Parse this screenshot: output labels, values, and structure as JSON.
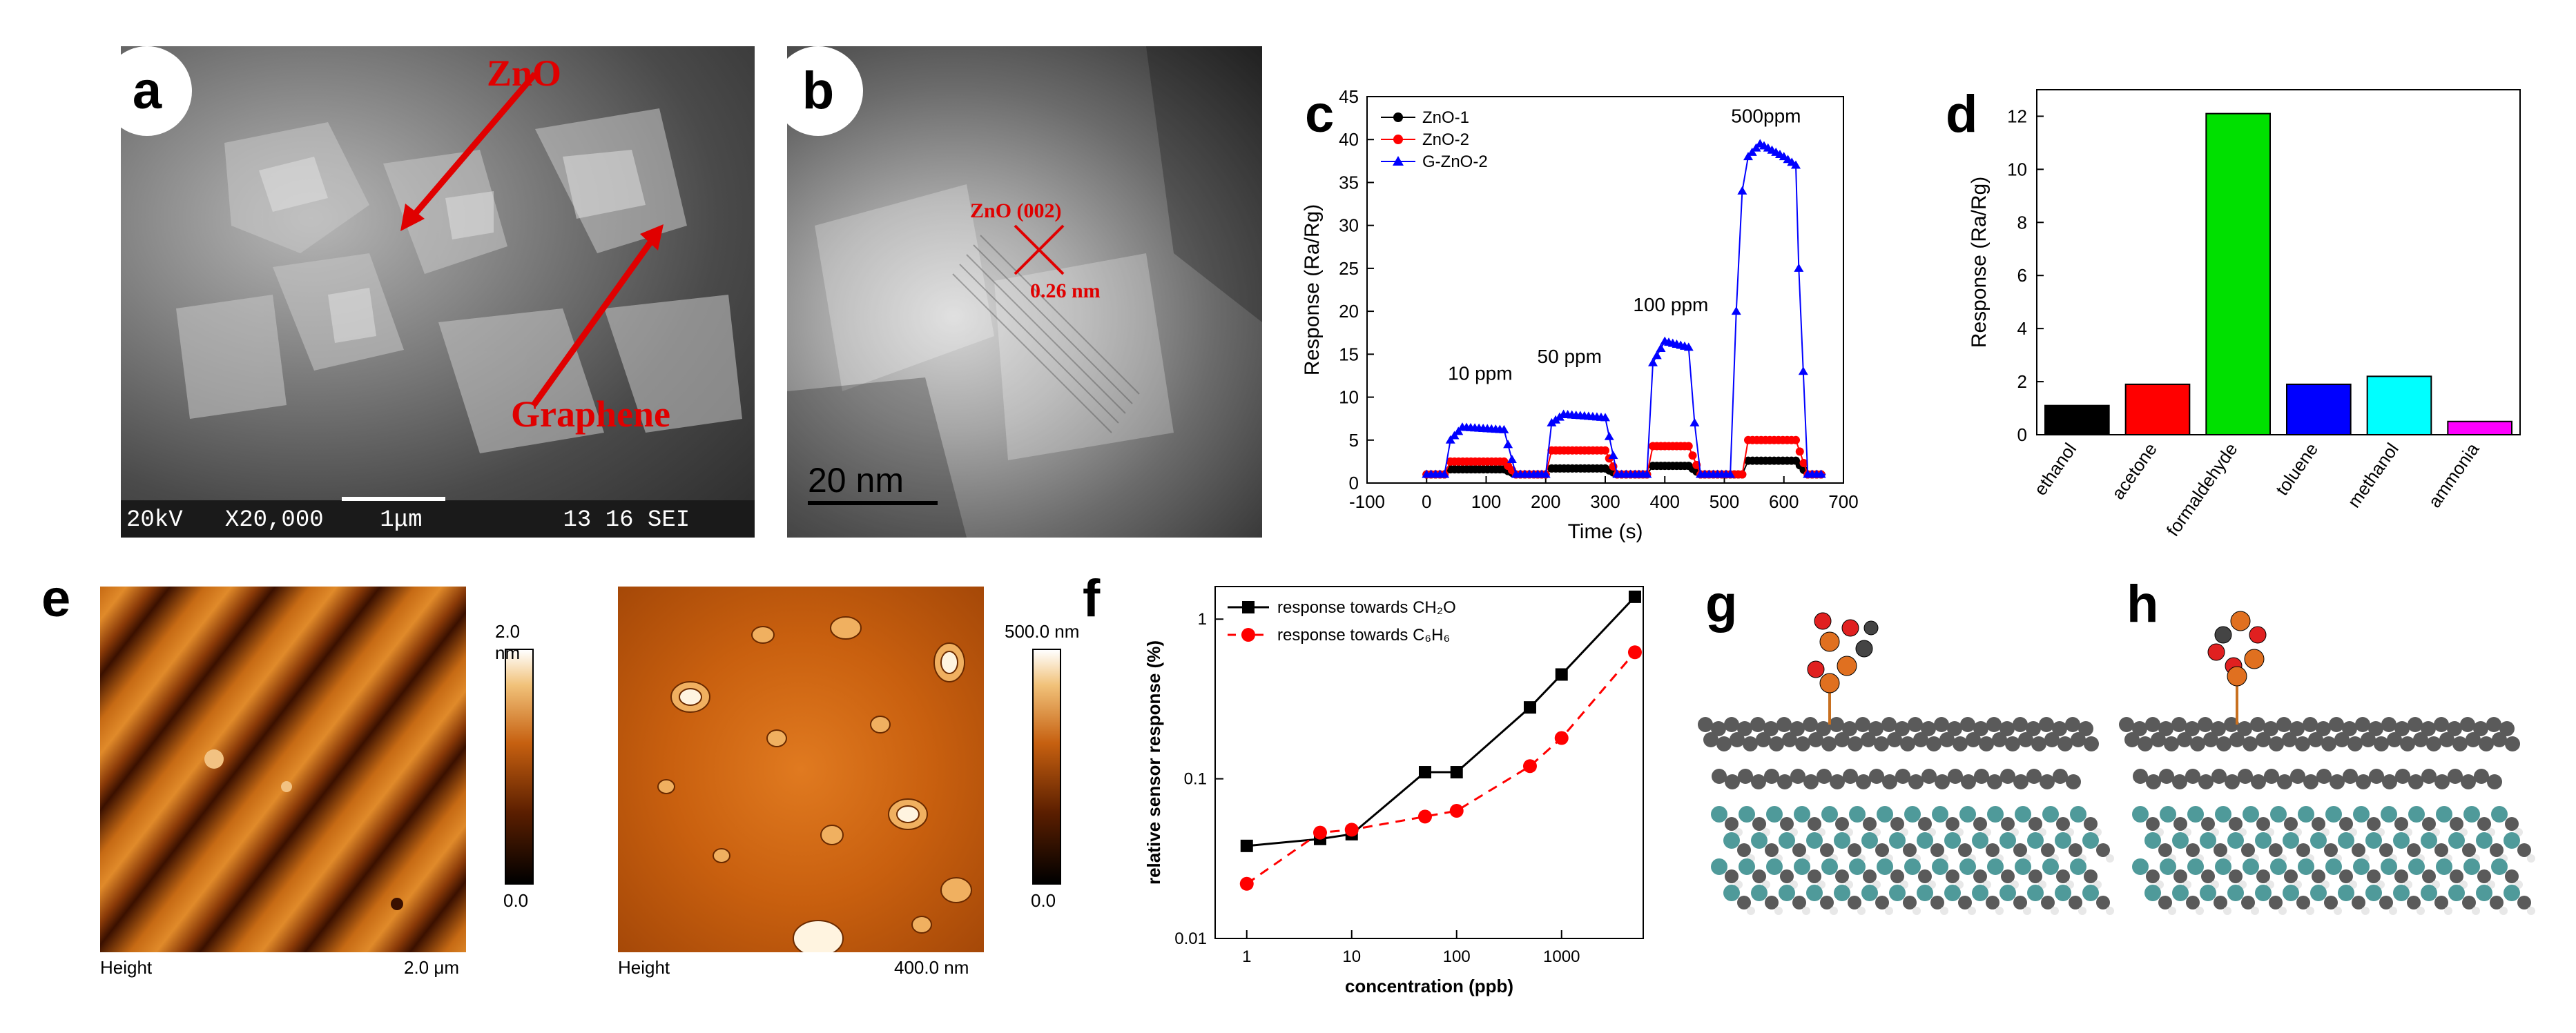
{
  "panels": {
    "a": {
      "label": "a",
      "zno": "ZnO",
      "graphene": "Graphene",
      "sem_bar": "20kV   X20,000    1μm          13 16 SEI"
    },
    "b": {
      "label": "b",
      "lattice": "ZnO (002)",
      "spacing": "0.26 nm",
      "scale": "20 nm"
    },
    "c": {
      "label": "c"
    },
    "d": {
      "label": "d"
    },
    "e": {
      "label": "e",
      "left": {
        "bottom_left": "Height",
        "bottom_right": "2.0 μm",
        "cmax": "2.0 nm",
        "cmin": "0.0"
      },
      "right": {
        "bottom_left": "Height",
        "bottom_right": "400.0 nm",
        "cmax": "500.0 nm",
        "cmin": "0.0"
      }
    },
    "f": {
      "label": "f"
    },
    "g": {
      "label": "g"
    },
    "h": {
      "label": "h"
    }
  },
  "colors": {
    "zno1": "#000000",
    "zno2": "#ff0000",
    "gzno2": "#0000ff",
    "annot": "#e00000"
  },
  "chart_data": [
    {
      "id": "c",
      "type": "line",
      "title": "",
      "xlabel": "Time (s)",
      "ylabel": "Response (Ra/Rg)",
      "xlim": [
        -100,
        700
      ],
      "ylim": [
        0,
        45
      ],
      "xticks": [
        -100,
        0,
        100,
        200,
        300,
        400,
        500,
        600,
        700
      ],
      "yticks": [
        0,
        5,
        10,
        15,
        20,
        25,
        30,
        35,
        40,
        45
      ],
      "legend": [
        "ZnO-1",
        "ZnO-2",
        "G-ZnO-2"
      ],
      "annotations": [
        {
          "text": "10 ppm",
          "x": 90,
          "y": 12
        },
        {
          "text": "50 ppm",
          "x": 240,
          "y": 14
        },
        {
          "text": "100 ppm",
          "x": 410,
          "y": 20
        },
        {
          "text": "500ppm",
          "x": 570,
          "y": 42
        }
      ],
      "series": [
        {
          "name": "ZnO-1",
          "color": "#000000",
          "x": [
            0,
            30,
            40,
            130,
            150,
            180,
            200,
            210,
            300,
            320,
            350,
            370,
            380,
            440,
            460,
            510,
            530,
            540,
            620,
            640,
            670
          ],
          "y": [
            1,
            1,
            1.6,
            1.6,
            1,
            1,
            1,
            1.7,
            1.7,
            1,
            1,
            1,
            2,
            2,
            1,
            1,
            1,
            2.6,
            2.6,
            1,
            1
          ]
        },
        {
          "name": "ZnO-2",
          "color": "#ff0000",
          "x": [
            0,
            30,
            40,
            130,
            150,
            180,
            200,
            210,
            300,
            320,
            350,
            370,
            380,
            440,
            460,
            510,
            530,
            540,
            620,
            640,
            670
          ],
          "y": [
            1,
            1,
            2.5,
            2.5,
            1,
            1,
            1,
            3.8,
            3.8,
            1,
            1,
            1,
            4.3,
            4.3,
            1,
            1,
            1,
            5,
            5,
            1,
            1
          ]
        },
        {
          "name": "G-ZnO-2",
          "color": "#0000ff",
          "x": [
            0,
            30,
            40,
            60,
            130,
            150,
            180,
            200,
            210,
            230,
            300,
            320,
            350,
            370,
            380,
            400,
            440,
            450,
            460,
            510,
            520,
            530,
            540,
            560,
            600,
            620,
            625,
            640,
            670
          ],
          "y": [
            1,
            1,
            5,
            6.5,
            6.2,
            1,
            1,
            1,
            7,
            8,
            7.6,
            1,
            1,
            1,
            14,
            16.5,
            15.8,
            7,
            1,
            1,
            20,
            34,
            38,
            39.5,
            38,
            37,
            25,
            1,
            1
          ]
        }
      ]
    },
    {
      "id": "d",
      "type": "bar",
      "ylabel": "Response (Ra/Rg)",
      "ylim": [
        0,
        13
      ],
      "yticks": [
        0,
        2,
        4,
        6,
        8,
        10,
        12
      ],
      "categories": [
        "ethanol",
        "acetone",
        "formaldehyde",
        "toluene",
        "methanol",
        "ammonia"
      ],
      "values": [
        1.1,
        1.9,
        12.1,
        1.9,
        2.2,
        0.5
      ],
      "colors": [
        "#000000",
        "#ff0000",
        "#00e000",
        "#0000ff",
        "#00ffff",
        "#ff00ff"
      ]
    },
    {
      "id": "f",
      "type": "line",
      "xlabel": "concentration (ppb)",
      "ylabel": "relative sensor response (%)",
      "xscale": "log",
      "yscale": "log",
      "xlim": [
        0.5,
        6000
      ],
      "ylim": [
        0.01,
        1.6
      ],
      "xticks": [
        1,
        10,
        100,
        1000
      ],
      "yticks": [
        0.01,
        0.1,
        1
      ],
      "series": [
        {
          "name": "response towards CH₂O",
          "color": "#000000",
          "style": "solid",
          "x": [
            1,
            5,
            10,
            50,
            100,
            500,
            1000,
            5000
          ],
          "y": [
            0.038,
            0.042,
            0.045,
            0.11,
            0.11,
            0.28,
            0.45,
            1.38
          ]
        },
        {
          "name": "response towards C₆H₆",
          "color": "#ff0000",
          "style": "dashed",
          "x": [
            1,
            5,
            10,
            50,
            100,
            500,
            1000,
            5000
          ],
          "y": [
            0.022,
            0.046,
            0.048,
            0.058,
            0.063,
            0.12,
            0.18,
            0.62
          ]
        }
      ]
    }
  ]
}
